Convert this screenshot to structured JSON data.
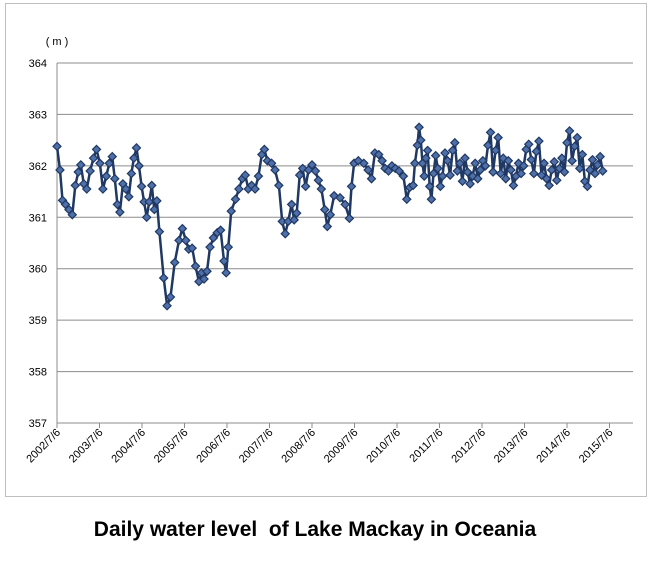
{
  "chart_data": {
    "type": "line",
    "title": "Daily water level  of Lake Mackay in Oceania",
    "unit_label": "( m )",
    "ylim": [
      357,
      364
    ],
    "yticks": [
      357,
      358,
      359,
      360,
      361,
      362,
      363,
      364
    ],
    "xticks": [
      "2002/7/6",
      "2003/7/6",
      "2004/7/6",
      "2005/7/6",
      "2006/7/6",
      "2007/7/6",
      "2008/7/6",
      "2009/7/6",
      "2010/7/6",
      "2011/7/6",
      "2012/7/6",
      "2013/7/6",
      "2014/7/6",
      "2015/7/6"
    ],
    "grid": true,
    "line_color": "#1f3864",
    "marker": "diamond",
    "series": [
      {
        "values": [
          [
            2002.5,
            362.38
          ],
          [
            2002.57,
            361.92
          ],
          [
            2002.63,
            361.33
          ],
          [
            2002.7,
            361.25
          ],
          [
            2002.78,
            361.15
          ],
          [
            2002.86,
            361.05
          ],
          [
            2002.93,
            361.62
          ],
          [
            2003.0,
            361.88
          ],
          [
            2003.06,
            362.02
          ],
          [
            2003.13,
            361.65
          ],
          [
            2003.2,
            361.55
          ],
          [
            2003.28,
            361.9
          ],
          [
            2003.36,
            362.15
          ],
          [
            2003.43,
            362.32
          ],
          [
            2003.51,
            362.05
          ],
          [
            2003.58,
            361.55
          ],
          [
            2003.66,
            361.8
          ],
          [
            2003.73,
            362.05
          ],
          [
            2003.8,
            362.18
          ],
          [
            2003.86,
            361.75
          ],
          [
            2003.92,
            361.25
          ],
          [
            2003.98,
            361.1
          ],
          [
            2004.05,
            361.65
          ],
          [
            2004.12,
            361.55
          ],
          [
            2004.19,
            361.4
          ],
          [
            2004.25,
            361.85
          ],
          [
            2004.31,
            362.15
          ],
          [
            2004.37,
            362.35
          ],
          [
            2004.43,
            362.0
          ],
          [
            2004.49,
            361.6
          ],
          [
            2004.55,
            361.3
          ],
          [
            2004.61,
            361.0
          ],
          [
            2004.67,
            361.3
          ],
          [
            2004.73,
            361.62
          ],
          [
            2004.79,
            361.15
          ],
          [
            2004.85,
            361.32
          ],
          [
            2004.91,
            360.72
          ],
          [
            2005.01,
            359.82
          ],
          [
            2005.09,
            359.28
          ],
          [
            2005.17,
            359.45
          ],
          [
            2005.27,
            360.12
          ],
          [
            2005.37,
            360.55
          ],
          [
            2005.45,
            360.78
          ],
          [
            2005.53,
            360.55
          ],
          [
            2005.6,
            360.38
          ],
          [
            2005.68,
            360.4
          ],
          [
            2005.76,
            360.05
          ],
          [
            2005.84,
            359.75
          ],
          [
            2005.9,
            359.92
          ],
          [
            2005.96,
            359.8
          ],
          [
            2006.03,
            359.95
          ],
          [
            2006.1,
            360.42
          ],
          [
            2006.18,
            360.6
          ],
          [
            2006.27,
            360.7
          ],
          [
            2006.35,
            360.75
          ],
          [
            2006.43,
            360.15
          ],
          [
            2006.48,
            359.92
          ],
          [
            2006.53,
            360.42
          ],
          [
            2006.6,
            361.12
          ],
          [
            2006.7,
            361.35
          ],
          [
            2006.78,
            361.55
          ],
          [
            2006.86,
            361.75
          ],
          [
            2006.93,
            361.82
          ],
          [
            2007.0,
            361.55
          ],
          [
            2007.08,
            361.62
          ],
          [
            2007.16,
            361.55
          ],
          [
            2007.24,
            361.8
          ],
          [
            2007.32,
            362.22
          ],
          [
            2007.38,
            362.32
          ],
          [
            2007.45,
            362.1
          ],
          [
            2007.55,
            362.05
          ],
          [
            2007.63,
            361.92
          ],
          [
            2007.72,
            361.62
          ],
          [
            2007.8,
            360.92
          ],
          [
            2007.87,
            360.68
          ],
          [
            2007.94,
            360.92
          ],
          [
            2008.02,
            361.25
          ],
          [
            2008.08,
            360.95
          ],
          [
            2008.14,
            361.08
          ],
          [
            2008.21,
            361.82
          ],
          [
            2008.28,
            361.95
          ],
          [
            2008.35,
            361.6
          ],
          [
            2008.42,
            361.92
          ],
          [
            2008.5,
            362.02
          ],
          [
            2008.58,
            361.9
          ],
          [
            2008.65,
            361.72
          ],
          [
            2008.72,
            361.55
          ],
          [
            2008.8,
            361.15
          ],
          [
            2008.86,
            360.82
          ],
          [
            2008.93,
            361.05
          ],
          [
            2009.02,
            361.42
          ],
          [
            2009.16,
            361.38
          ],
          [
            2009.28,
            361.25
          ],
          [
            2009.38,
            360.98
          ],
          [
            2009.43,
            361.6
          ],
          [
            2009.49,
            362.05
          ],
          [
            2009.59,
            362.1
          ],
          [
            2009.72,
            362.05
          ],
          [
            2009.82,
            361.92
          ],
          [
            2009.9,
            361.75
          ],
          [
            2009.98,
            362.25
          ],
          [
            2010.07,
            362.22
          ],
          [
            2010.15,
            362.1
          ],
          [
            2010.22,
            361.95
          ],
          [
            2010.3,
            361.9
          ],
          [
            2010.38,
            362.0
          ],
          [
            2010.46,
            361.95
          ],
          [
            2010.55,
            361.9
          ],
          [
            2010.65,
            361.8
          ],
          [
            2010.73,
            361.35
          ],
          [
            2010.8,
            361.58
          ],
          [
            2010.88,
            361.62
          ],
          [
            2010.92,
            362.05
          ],
          [
            2010.98,
            362.4
          ],
          [
            2011.02,
            362.75
          ],
          [
            2011.06,
            362.5
          ],
          [
            2011.1,
            362.05
          ],
          [
            2011.14,
            361.8
          ],
          [
            2011.18,
            362.15
          ],
          [
            2011.22,
            362.3
          ],
          [
            2011.27,
            361.6
          ],
          [
            2011.31,
            361.35
          ],
          [
            2011.36,
            361.85
          ],
          [
            2011.41,
            362.2
          ],
          [
            2011.46,
            361.95
          ],
          [
            2011.52,
            361.6
          ],
          [
            2011.57,
            361.8
          ],
          [
            2011.63,
            362.25
          ],
          [
            2011.69,
            362.1
          ],
          [
            2011.75,
            361.82
          ],
          [
            2011.81,
            362.3
          ],
          [
            2011.86,
            362.45
          ],
          [
            2011.92,
            361.9
          ],
          [
            2011.98,
            362.05
          ],
          [
            2012.04,
            361.7
          ],
          [
            2012.1,
            362.15
          ],
          [
            2012.16,
            361.88
          ],
          [
            2012.22,
            361.65
          ],
          [
            2012.28,
            361.8
          ],
          [
            2012.34,
            362.05
          ],
          [
            2012.4,
            361.75
          ],
          [
            2012.46,
            361.92
          ],
          [
            2012.52,
            362.1
          ],
          [
            2012.58,
            362.0
          ],
          [
            2012.64,
            362.4
          ],
          [
            2012.7,
            362.65
          ],
          [
            2012.76,
            361.88
          ],
          [
            2012.82,
            362.3
          ],
          [
            2012.88,
            362.55
          ],
          [
            2012.94,
            361.85
          ],
          [
            2013.0,
            362.15
          ],
          [
            2013.06,
            361.75
          ],
          [
            2013.12,
            362.1
          ],
          [
            2013.18,
            361.92
          ],
          [
            2013.24,
            361.62
          ],
          [
            2013.3,
            361.8
          ],
          [
            2013.36,
            362.05
          ],
          [
            2013.42,
            361.85
          ],
          [
            2013.48,
            362.0
          ],
          [
            2013.54,
            362.32
          ],
          [
            2013.6,
            362.42
          ],
          [
            2013.66,
            362.12
          ],
          [
            2013.72,
            361.85
          ],
          [
            2013.78,
            362.28
          ],
          [
            2013.84,
            362.48
          ],
          [
            2013.9,
            361.82
          ],
          [
            2013.96,
            362.05
          ],
          [
            2014.02,
            361.75
          ],
          [
            2014.08,
            361.62
          ],
          [
            2014.14,
            361.92
          ],
          [
            2014.2,
            362.08
          ],
          [
            2014.26,
            361.72
          ],
          [
            2014.32,
            361.95
          ],
          [
            2014.38,
            362.15
          ],
          [
            2014.44,
            361.88
          ],
          [
            2014.5,
            362.45
          ],
          [
            2014.56,
            362.68
          ],
          [
            2014.62,
            362.1
          ],
          [
            2014.68,
            362.38
          ],
          [
            2014.74,
            362.55
          ],
          [
            2014.8,
            361.95
          ],
          [
            2014.86,
            362.22
          ],
          [
            2014.92,
            361.7
          ],
          [
            2014.98,
            361.6
          ],
          [
            2015.04,
            361.92
          ],
          [
            2015.1,
            362.12
          ],
          [
            2015.16,
            361.85
          ],
          [
            2015.22,
            362.02
          ],
          [
            2015.28,
            362.18
          ],
          [
            2015.34,
            361.9
          ]
        ]
      }
    ]
  }
}
